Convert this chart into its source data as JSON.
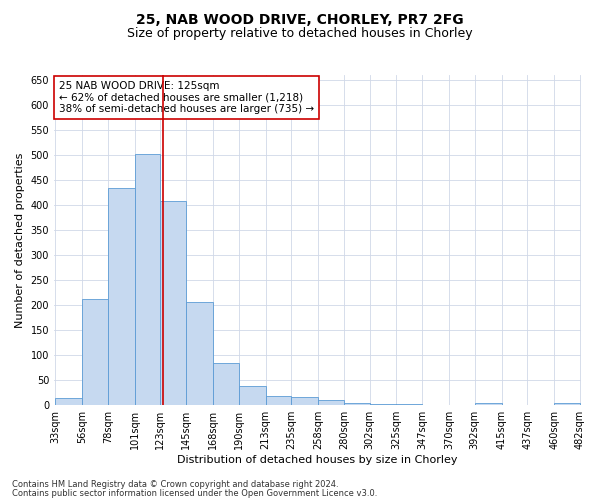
{
  "title": "25, NAB WOOD DRIVE, CHORLEY, PR7 2FG",
  "subtitle": "Size of property relative to detached houses in Chorley",
  "xlabel": "Distribution of detached houses by size in Chorley",
  "ylabel": "Number of detached properties",
  "footer1": "Contains HM Land Registry data © Crown copyright and database right 2024.",
  "footer2": "Contains public sector information licensed under the Open Government Licence v3.0.",
  "annotation_line1": "25 NAB WOOD DRIVE: 125sqm",
  "annotation_line2": "← 62% of detached houses are smaller (1,218)",
  "annotation_line3": "38% of semi-detached houses are larger (735) →",
  "property_size": 125,
  "bar_left_edges": [
    33,
    56,
    78,
    101,
    123,
    145,
    168,
    190,
    213,
    235,
    258,
    280,
    302,
    325,
    347,
    370,
    392,
    415,
    437,
    460
  ],
  "bar_widths": [
    23,
    22,
    23,
    22,
    22,
    23,
    22,
    23,
    22,
    23,
    22,
    22,
    23,
    22,
    23,
    22,
    23,
    22,
    23,
    22
  ],
  "bar_heights": [
    15,
    213,
    435,
    503,
    408,
    207,
    85,
    38,
    18,
    17,
    10,
    5,
    2,
    2,
    1,
    1,
    5,
    1,
    1,
    5
  ],
  "bar_color": "#c6d9f0",
  "bar_edge_color": "#5b9bd5",
  "grid_color": "#d0d8e8",
  "vline_color": "#cc0000",
  "vline_x": 125,
  "annotation_box_color": "#cc0000",
  "ylim": [
    0,
    660
  ],
  "yticks": [
    0,
    50,
    100,
    150,
    200,
    250,
    300,
    350,
    400,
    450,
    500,
    550,
    600,
    650
  ],
  "bg_color": "#ffffff",
  "title_fontsize": 10,
  "subtitle_fontsize": 9,
  "axis_label_fontsize": 8,
  "tick_fontsize": 7,
  "footer_fontsize": 6,
  "annotation_fontsize": 7.5
}
